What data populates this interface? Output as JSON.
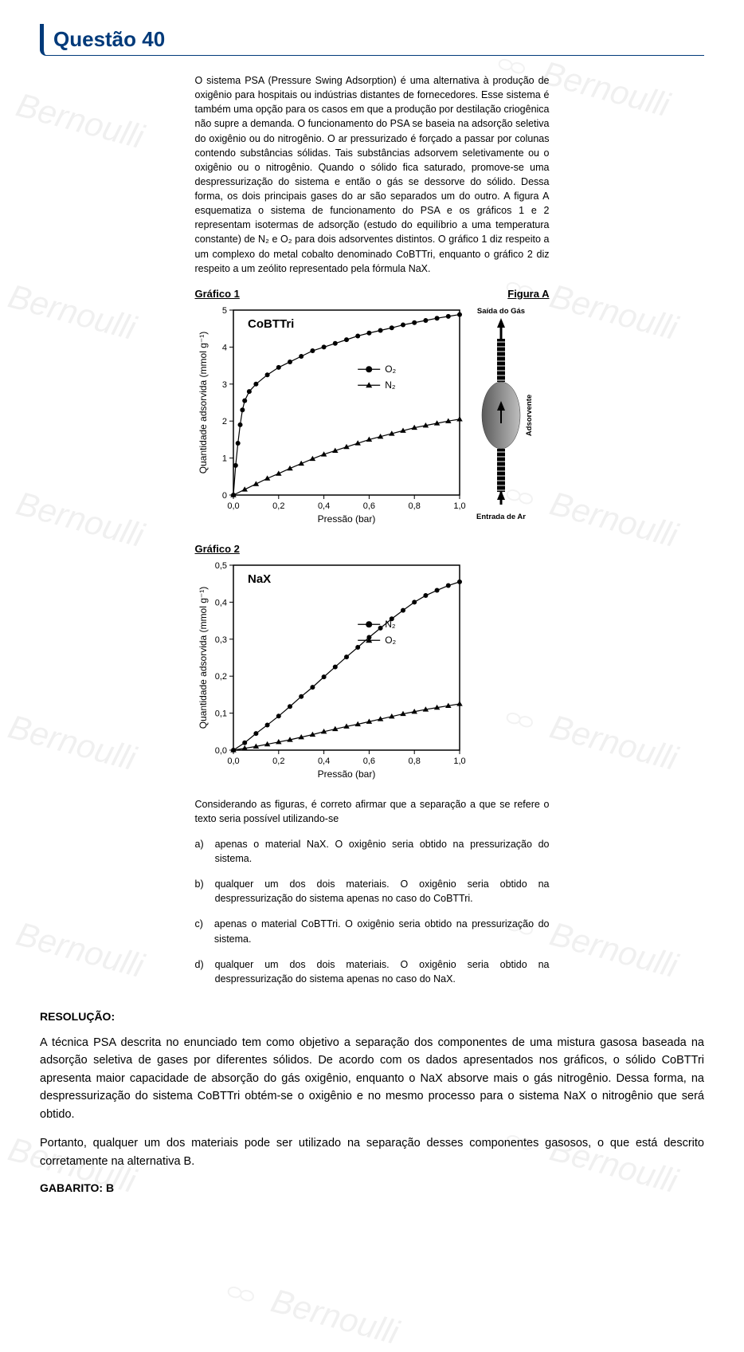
{
  "header": {
    "title": "Questão 40"
  },
  "watermark_text": "Bernoulli",
  "question_text": "O sistema PSA (Pressure Swing Adsorption) é uma alternativa à produção de oxigênio para hospitais ou indústrias distantes de fornecedores. Esse sistema é também uma opção para os casos em que a produção por destilação criogênica não supre a demanda. O funcionamento do PSA se baseia na adsorção seletiva do oxigênio ou do nitrogênio. O ar pressurizado é forçado a passar por colunas contendo substâncias sólidas. Tais substâncias adsorvem seletivamente ou o oxigênio ou o nitrogênio. Quando o sólido fica saturado, promove-se uma despressurização do sistema e então o gás se dessorve do sólido. Dessa forma, os dois principais gases do ar são separados um do outro. A figura A esquematiza o sistema de funcionamento do PSA e os gráficos 1 e 2 representam isotermas de adsorção (estudo do equilíbrio a uma temperatura constante) de N₂ e O₂ para dois adsorventes distintos. O gráfico 1 diz respeito a um complexo do metal cobalto denominado CoBTTri, enquanto o gráfico 2 diz respeito a um zeólito representado pela fórmula NaX.",
  "chart1": {
    "title": "Gráfico 1",
    "type": "scatter-line",
    "inset_label": "CoBTTri",
    "xlabel": "Pressão (bar)",
    "ylabel": "Quantidade adsorvida (mmol g⁻¹)",
    "xlim": [
      0,
      1.0
    ],
    "ylim": [
      0,
      5
    ],
    "xticks": [
      "0,0",
      "0,2",
      "0,4",
      "0,6",
      "0,8",
      "1,0"
    ],
    "yticks": [
      "0",
      "1",
      "2",
      "3",
      "4",
      "5"
    ],
    "axis_color": "#000000",
    "background_color": "#ffffff",
    "border_width": 1.5,
    "tick_fontsize": 11,
    "label_fontsize": 12,
    "legend": {
      "items": [
        "O₂",
        "N₂"
      ],
      "markers": [
        "circle",
        "triangle"
      ],
      "position": "right-middle"
    },
    "series": [
      {
        "name": "O2",
        "marker": "circle",
        "marker_size": 5,
        "color": "#000000",
        "line_width": 1.2,
        "x": [
          0.0,
          0.01,
          0.02,
          0.03,
          0.04,
          0.05,
          0.07,
          0.1,
          0.15,
          0.2,
          0.25,
          0.3,
          0.35,
          0.4,
          0.45,
          0.5,
          0.55,
          0.6,
          0.65,
          0.7,
          0.75,
          0.8,
          0.85,
          0.9,
          0.95,
          1.0
        ],
        "y": [
          0.0,
          0.8,
          1.4,
          1.9,
          2.3,
          2.55,
          2.8,
          3.0,
          3.25,
          3.45,
          3.6,
          3.75,
          3.9,
          4.0,
          4.1,
          4.2,
          4.3,
          4.38,
          4.45,
          4.52,
          4.6,
          4.66,
          4.72,
          4.78,
          4.83,
          4.88
        ]
      },
      {
        "name": "N2",
        "marker": "triangle",
        "marker_size": 5,
        "color": "#000000",
        "line_width": 1.2,
        "x": [
          0.0,
          0.05,
          0.1,
          0.15,
          0.2,
          0.25,
          0.3,
          0.35,
          0.4,
          0.45,
          0.5,
          0.55,
          0.6,
          0.65,
          0.7,
          0.75,
          0.8,
          0.85,
          0.9,
          0.95,
          1.0
        ],
        "y": [
          0.0,
          0.15,
          0.3,
          0.45,
          0.58,
          0.72,
          0.85,
          0.98,
          1.1,
          1.2,
          1.3,
          1.4,
          1.5,
          1.58,
          1.66,
          1.74,
          1.82,
          1.88,
          1.94,
          2.0,
          2.05
        ]
      }
    ]
  },
  "figureA": {
    "title": "Figura A",
    "top_label": "Saída do Gás",
    "side_label": "Adsorvente",
    "bottom_label": "Entrada de Ar",
    "tube_color": "#000000",
    "bulb_gradient_from": "#5a5a5a",
    "bulb_gradient_to": "#bfbfbf",
    "arrow_color": "#000000",
    "tick_color": "#ffffff"
  },
  "chart2": {
    "title": "Gráfico 2",
    "type": "scatter-line",
    "inset_label": "NaX",
    "xlabel": "Pressão (bar)",
    "ylabel": "Quantidade adsorvida (mmol g⁻¹)",
    "xlim": [
      0,
      1.0
    ],
    "ylim": [
      0,
      0.5
    ],
    "xticks": [
      "0,0",
      "0,2",
      "0,4",
      "0,6",
      "0,8",
      "1,0"
    ],
    "yticks": [
      "0,0",
      "0,1",
      "0,2",
      "0,3",
      "0,4",
      "0,5"
    ],
    "axis_color": "#000000",
    "background_color": "#ffffff",
    "border_width": 1.5,
    "tick_fontsize": 11,
    "label_fontsize": 12,
    "legend": {
      "items": [
        "N₂",
        "O₂"
      ],
      "markers": [
        "circle",
        "triangle"
      ],
      "position": "right-middle"
    },
    "series": [
      {
        "name": "N2",
        "marker": "circle",
        "marker_size": 5,
        "color": "#000000",
        "line_width": 1.2,
        "x": [
          0.0,
          0.05,
          0.1,
          0.15,
          0.2,
          0.25,
          0.3,
          0.35,
          0.4,
          0.45,
          0.5,
          0.55,
          0.6,
          0.65,
          0.7,
          0.75,
          0.8,
          0.85,
          0.9,
          0.95,
          1.0
        ],
        "y": [
          0.0,
          0.02,
          0.045,
          0.068,
          0.092,
          0.118,
          0.145,
          0.17,
          0.198,
          0.225,
          0.252,
          0.278,
          0.305,
          0.33,
          0.355,
          0.378,
          0.4,
          0.418,
          0.432,
          0.445,
          0.455
        ]
      },
      {
        "name": "O2",
        "marker": "triangle",
        "marker_size": 5,
        "color": "#000000",
        "line_width": 1.2,
        "x": [
          0.0,
          0.05,
          0.1,
          0.15,
          0.2,
          0.25,
          0.3,
          0.35,
          0.4,
          0.45,
          0.5,
          0.55,
          0.6,
          0.65,
          0.7,
          0.75,
          0.8,
          0.85,
          0.9,
          0.95,
          1.0
        ],
        "y": [
          0.0,
          0.005,
          0.01,
          0.016,
          0.022,
          0.028,
          0.035,
          0.042,
          0.05,
          0.057,
          0.064,
          0.07,
          0.077,
          0.084,
          0.091,
          0.098,
          0.104,
          0.11,
          0.115,
          0.12,
          0.125
        ]
      }
    ]
  },
  "stem": "Considerando as figuras, é correto afirmar que a separação a que se refere o texto seria possível utilizando-se",
  "options": [
    {
      "letter": "a)",
      "text": "apenas o material NaX. O oxigênio seria obtido na pressurização do sistema."
    },
    {
      "letter": "b)",
      "text": "qualquer um dos dois materiais. O oxigênio seria obtido na despressurização do sistema apenas no caso do CoBTTri."
    },
    {
      "letter": "c)",
      "text": "apenas o material CoBTTri. O oxigênio seria obtido na pressurização do sistema."
    },
    {
      "letter": "d)",
      "text": "qualquer um dos dois materiais. O oxigênio seria obtido na despressurização do sistema apenas no caso do NaX."
    }
  ],
  "resolution": {
    "heading": "RESOLUÇÃO:",
    "p1": "A técnica PSA descrita no enunciado tem como objetivo a separação dos componentes de uma mistura gasosa baseada na adsorção seletiva de gases por diferentes sólidos. De acordo com os dados apresentados nos gráficos, o sólido CoBTTri apresenta maior capacidade de absorção do gás oxigênio, enquanto o NaX absorve mais o gás nitrogênio. Dessa forma, na despressurização do sistema CoBTTri obtém-se o oxigênio e no mesmo processo para o sistema NaX o nitrogênio que será obtido.",
    "p2": "Portanto, qualquer um dos materiais pode ser utilizado na separação desses componentes gasosos, o que está descrito corretamente na alternativa B.",
    "answer": "GABARITO: B"
  }
}
